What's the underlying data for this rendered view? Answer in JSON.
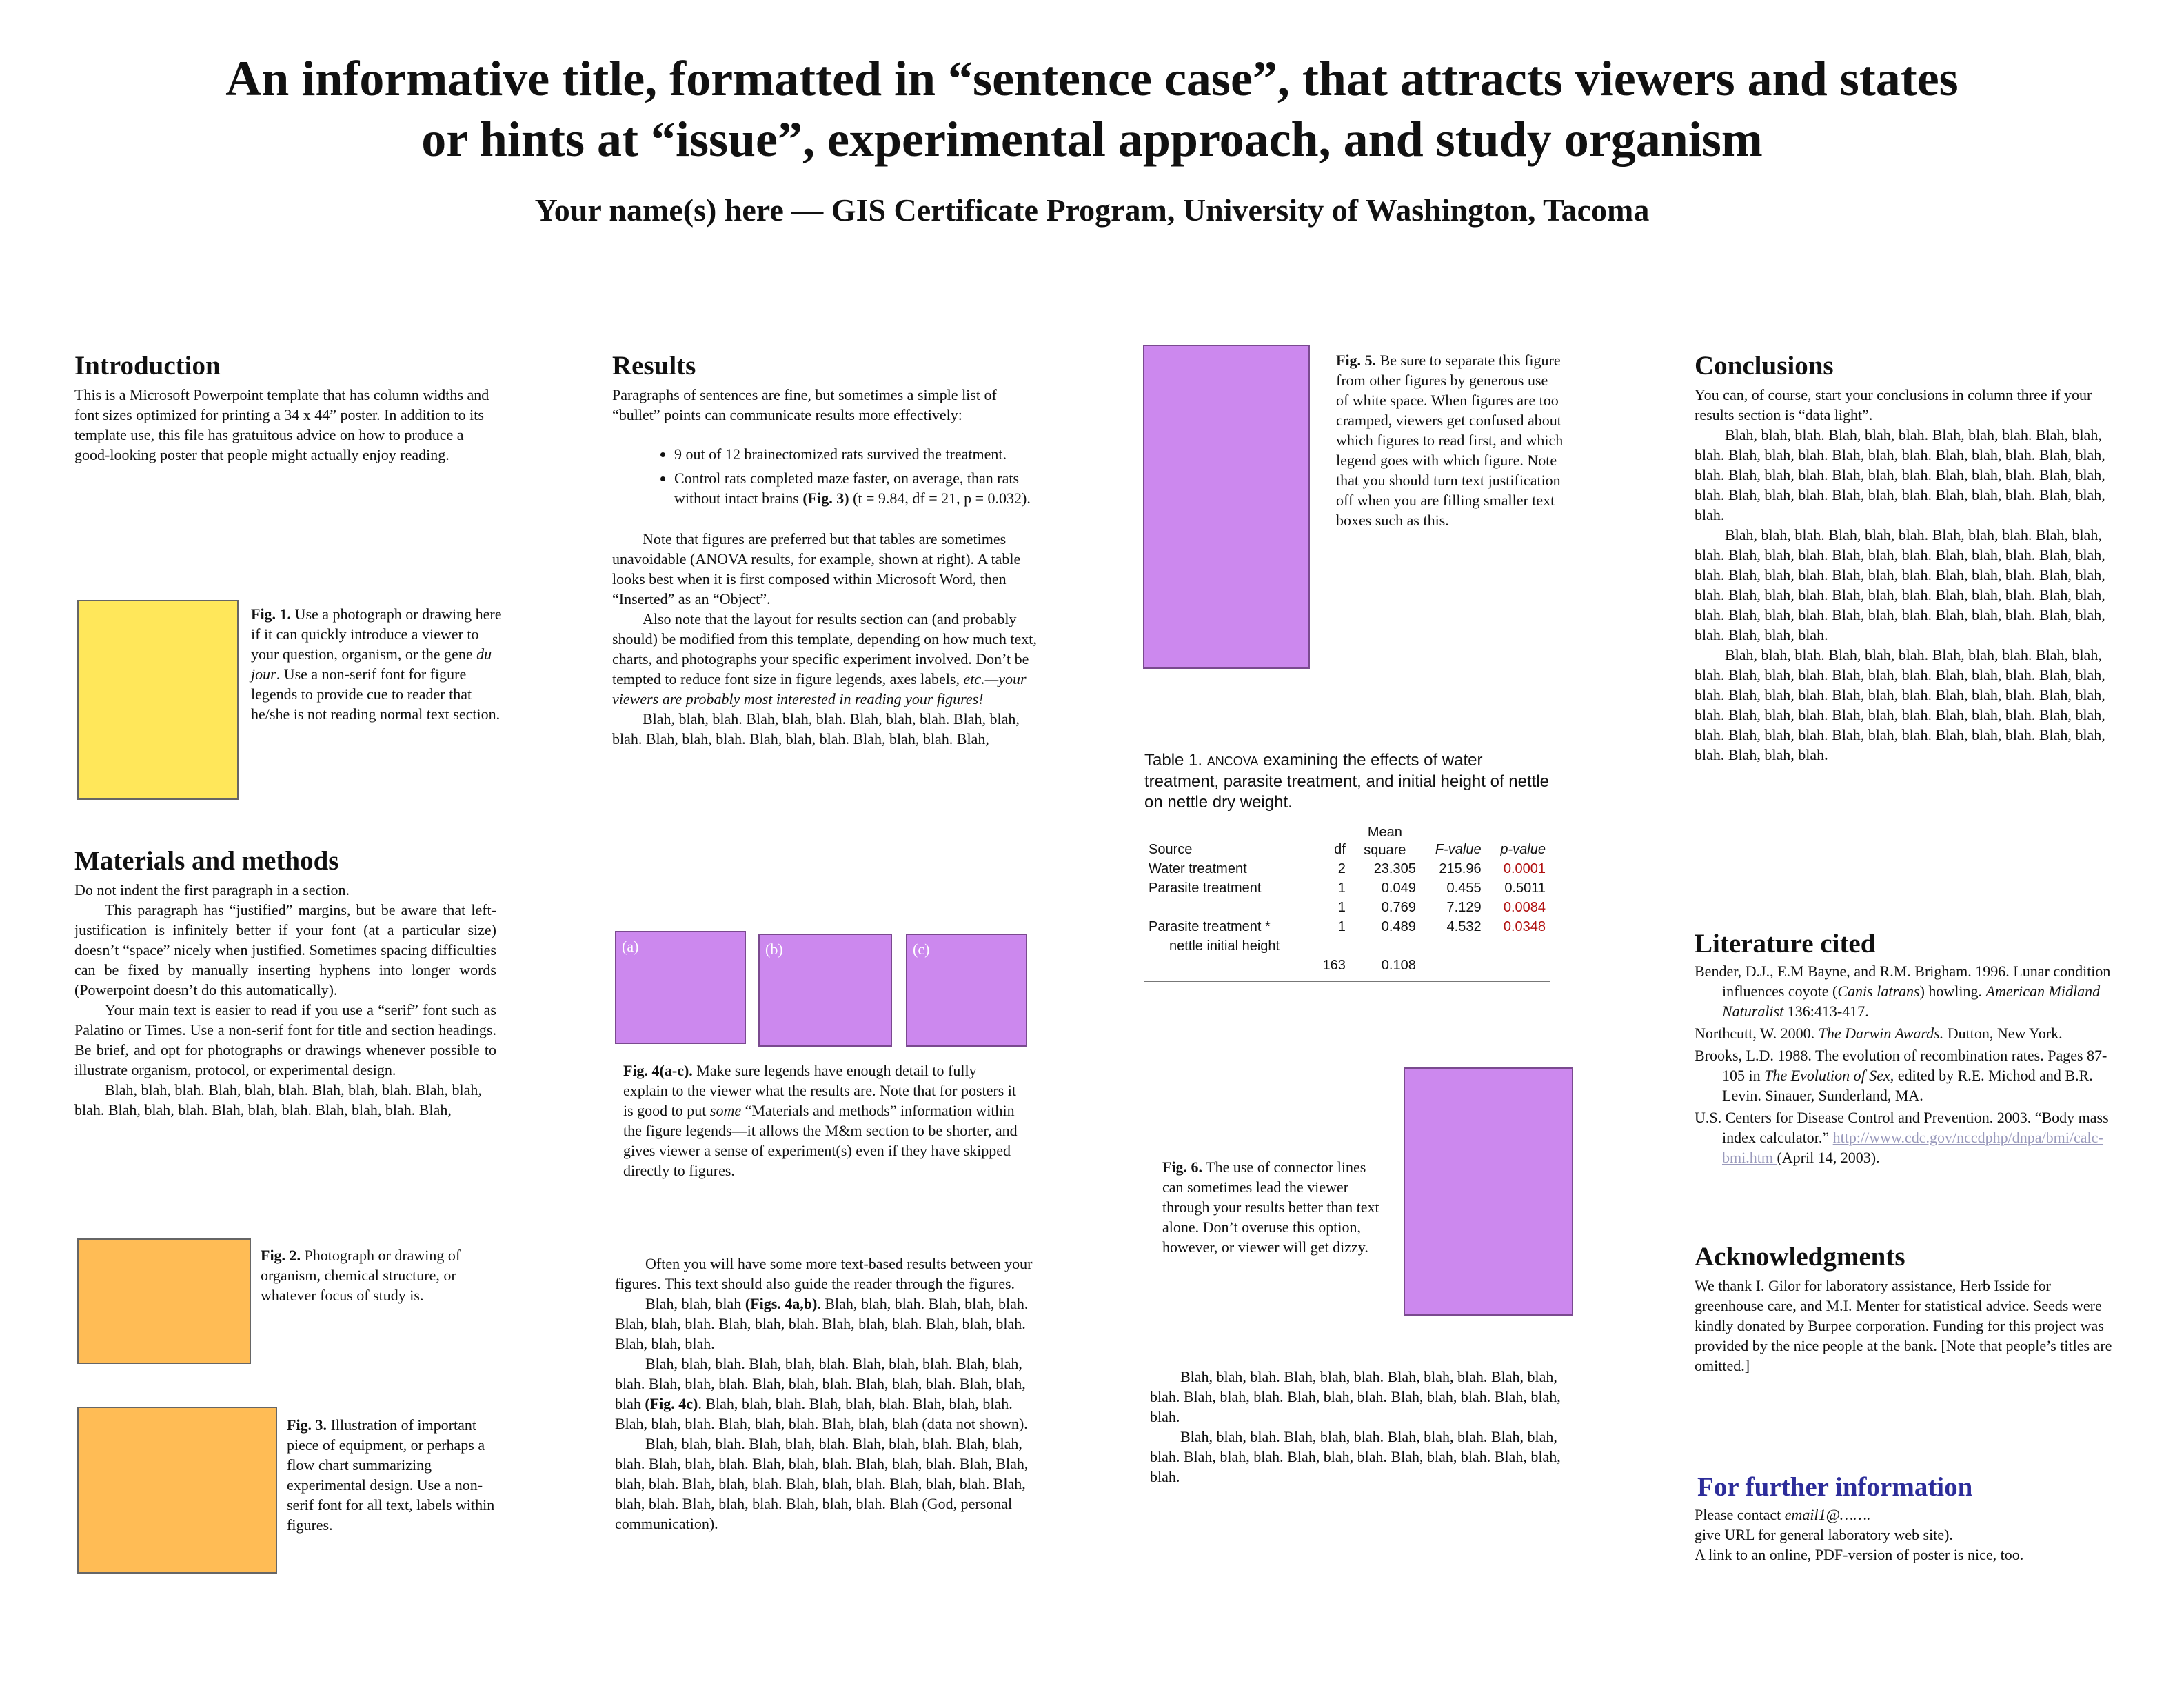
{
  "title": {
    "line1": "An informative title, formatted in “sentence case”, that attracts viewers and states",
    "line2": "or hints at “issue”, experimental approach, and study organism"
  },
  "authors": "Your name(s) here — GIS Certificate Program, University of Washington, Tacoma",
  "introduction": {
    "heading": "Introduction",
    "text": "This is a Microsoft Powerpoint template that has column widths and font sizes optimized for printing a 34 x 44” poster. In addition to its template use, this file has gratuitous advice on how to produce a good-looking poster that people might actually enjoy reading."
  },
  "fig1": {
    "label": "Fig. 1.",
    "text_a": " Use a photograph or drawing here if it can quickly introduce a viewer to your question, organism, or the gene ",
    "italic": "du jour",
    "text_b": ". Use a non-serif font for figure legends to provide cue to reader that he/she is not reading normal text section."
  },
  "materials": {
    "heading": "Materials and methods",
    "p1": "Do not indent the first paragraph in a section.",
    "p2": "This paragraph has “justified” margins, but be aware that left-justification is infinitely better if your font (at a particular size) doesn’t “space” nicely when justified. Sometimes spacing difficulties can be fixed by manually inserting hyphens into longer words (Powerpoint doesn’t do this automatically).",
    "p3": "Your main text is easier to read if you use a “serif” font such as Palatino or Times.  Use a non-serif font for title and section headings. Be brief, and opt for photographs or drawings whenever possible to illustrate organism, protocol, or experimental design.",
    "p4": "Blah, blah, blah. Blah, blah, blah. Blah, blah, blah. Blah, blah, blah. Blah, blah, blah. Blah, blah, blah.          Blah, blah, blah. Blah,"
  },
  "fig2": {
    "label": "Fig. 2.",
    "text": " Photograph or drawing of organism, chemical structure, or whatever focus of study is."
  },
  "fig3": {
    "label": "Fig. 3.",
    "text": " Illustration of important piece of equipment, or perhaps a flow chart summarizing experimental design.  Use a non-serif font for all text, labels within figures."
  },
  "results": {
    "heading": "Results",
    "p1": "Paragraphs of sentences are fine, but sometimes a simple list of “bullet” points can communicate results more effectively:",
    "bullet1": "9 out of 12 brainectomized rats survived the treatment.",
    "bullet2_a": "Control rats completed maze faster, on average, than rats without intact brains ",
    "bullet2_fig": "(Fig. 3)",
    "bullet2_b": " (t = 9.84, df = 21, p = 0.032).",
    "p2": "Note that figures are preferred but that tables are sometimes unavoidable (ANOVA results, for example, shown at right).  A table looks best when it is first composed within Microsoft Word, then “Inserted” as an “Object”.",
    "p3_a": "Also note that the layout for results section can (and probably should) be modified from this template, depending on how much text, charts, and photographs your specific experiment involved. Don’t be tempted to reduce font size in figure legends, axes labels, ",
    "p3_italic": "etc.—your viewers are probably most interested in reading your figures!",
    "p4": "Blah, blah, blah. Blah, blah, blah. Blah, blah, blah. Blah, blah, blah. Blah, blah, blah. Blah, blah, blah.          Blah, blah, blah. Blah,"
  },
  "fig4": {
    "panels": [
      "(a)",
      "(b)",
      "(c)"
    ],
    "label": "Fig. 4(a-c).",
    "text_a": " Make sure legends have enough detail to fully explain to the viewer what the results are. Note that for posters it is good to put ",
    "italic": "some",
    "text_b": " “Materials and methods” information within the figure legends—it allows the M&m section to be shorter, and gives viewer a sense of experiment(s) even if they have skipped directly to figures."
  },
  "results2": {
    "p1": "Often you will have some more text-based results between your figures. This text should also guide the reader through the figures.",
    "p2_a": "Blah, blah, blah ",
    "p2_fig": "(Figs. 4a,b)",
    "p2_b": ". Blah, blah, blah. Blah, blah, blah. Blah, blah, blah. Blah, blah, blah. Blah, blah, blah. Blah, blah, blah. Blah, blah, blah.",
    "p3_a": "Blah, blah, blah. Blah, blah, blah. Blah, blah, blah. Blah, blah, blah. Blah, blah, blah. Blah, blah, blah.          Blah, blah, blah. Blah, blah, blah ",
    "p3_fig": "(Fig. 4c)",
    "p3_b": ". Blah, blah, blah. Blah, blah, blah. Blah, blah, blah. Blah, blah, blah. Blah, blah, blah. Blah, blah, blah (data not shown).",
    "p4": "Blah, blah, blah. Blah, blah, blah. Blah, blah, blah. Blah, blah, blah. Blah, blah, blah. Blah, blah, blah.  Blah, blah, blah. Blah,  Blah, blah, blah. Blah, blah, blah. Blah, blah, blah. Blah, blah, blah. Blah, blah, blah. Blah, blah, blah.  Blah, blah, blah. Blah (God, personal communication)."
  },
  "fig5": {
    "label": "Fig. 5.",
    "text": " Be sure to separate this figure from other figures by generous use of white space. When figures are too cramped, viewers get confused about which figures to read first, and which legend goes with which figure. Note that you should turn text justification off when you are filling smaller text boxes such as this."
  },
  "table1": {
    "label": "Table 1.",
    "caption_a": "  ",
    "caption_sc": "ANCOVA",
    "caption_b": " examining the effects of water treatment, parasite treatment, and initial height of nettle on nettle dry weight.",
    "headers": [
      "Source",
      "df",
      "Mean square",
      "F-value",
      "p-value"
    ],
    "rows": [
      [
        "Water treatment",
        "2",
        "23.305",
        "215.96",
        "0.0001"
      ],
      [
        "Parasite treatment",
        "1",
        "0.049",
        "0.455",
        "0.5011"
      ],
      [
        "",
        "1",
        "0.769",
        "7.129",
        "0.0084"
      ],
      [
        "Parasite treatment *",
        "1",
        "0.489",
        "4.532",
        "0.0348"
      ],
      [
        "nettle initial height",
        "",
        "",
        "",
        ""
      ],
      [
        "",
        "163",
        "0.108",
        "",
        ""
      ]
    ],
    "significant_color": "#b01010"
  },
  "fig6": {
    "label": "Fig. 6.",
    "text": "  The use of connector lines can sometimes lead the viewer through your results better than text alone.  Don’t overuse this option, however, or viewer will get dizzy."
  },
  "col3_text": {
    "p1": "Blah, blah, blah. Blah, blah, blah. Blah, blah, blah. Blah, blah, blah. Blah, blah, blah. Blah, blah, blah. Blah, blah, blah. Blah, blah, blah.",
    "p2": "Blah, blah, blah. Blah, blah, blah. Blah, blah, blah. Blah, blah, blah. Blah, blah, blah. Blah, blah, blah. Blah, blah, blah. Blah, blah, blah."
  },
  "conclusions": {
    "heading": "Conclusions",
    "p1": "You can, of course, start your conclusions in column three if your results section is “data light”.",
    "p2": "Blah, blah, blah. Blah, blah, blah. Blah, blah, blah. Blah, blah, blah. Blah, blah, blah. Blah, blah, blah. Blah, blah, blah. Blah, blah, blah. Blah, blah, blah. Blah, blah, blah. Blah, blah, blah. Blah, blah, blah. Blah, blah, blah. Blah, blah, blah. Blah, blah, blah. Blah, blah, blah.",
    "p3": "Blah, blah, blah. Blah, blah, blah. Blah, blah, blah. Blah, blah, blah. Blah, blah, blah. Blah, blah, blah. Blah, blah, blah. Blah, blah, blah. Blah, blah, blah. Blah, blah, blah. Blah, blah, blah. Blah, blah, blah. Blah, blah, blah. Blah, blah, blah. Blah, blah, blah. Blah, blah, blah. Blah, blah, blah. Blah, blah, blah. Blah, blah, blah. Blah, blah, blah. Blah, blah, blah.",
    "p4": "Blah, blah, blah. Blah, blah, blah. Blah, blah, blah. Blah, blah, blah. Blah, blah, blah. Blah, blah, blah. Blah, blah, blah. Blah, blah, blah. Blah, blah, blah. Blah, blah, blah. Blah, blah, blah. Blah, blah, blah. Blah, blah, blah. Blah, blah, blah. Blah, blah, blah. Blah, blah, blah. Blah, blah, blah. Blah, blah, blah. Blah, blah, blah. Blah, blah, blah. Blah, blah, blah."
  },
  "literature": {
    "heading": "Literature cited",
    "ref1_a": "Bender, D.J., E.M Bayne, and R.M. Brigham. 1996. Lunar condition influences coyote (",
    "ref1_it": "Canis latrans",
    "ref1_b": ") howling. ",
    "ref1_journal": "American Midland Naturalist",
    "ref1_c": " 136:413-417.",
    "ref2_a": "Northcutt, W. 2000. ",
    "ref2_it": "The Darwin Awards.",
    "ref2_b": " Dutton, New York.",
    "ref3_a": "Brooks, L.D. 1988. The evolution of recombination rates. Pages 87-105 in ",
    "ref3_it": "The Evolution of Sex,",
    "ref3_b": " edited by R.E. Michod and B.R. Levin. Sinauer, Sunderland, MA.",
    "ref4_a": "U.S. Centers for Disease Control and Prevention. 2003. “Body mass index calculator.”  ",
    "ref4_link": "http://www.cdc.gov/nccdphp/dnpa/bmi/calc-bmi.htm ",
    "ref4_b": "(April 14, 2003)."
  },
  "acknowledgments": {
    "heading": "Acknowledgments",
    "text": "We thank I. Gilor for laboratory assistance, Herb Isside for greenhouse care, and M.I. Menter for statistical advice. Seeds were kindly donated by Burpee corporation. Funding for this project was provided by the nice people at the bank. [Note that people’s titles are omitted.]"
  },
  "further_info": {
    "heading": "For further information",
    "line1_a": "Please contact  ",
    "line1_it": "email1@…….",
    "line2": "give URL for general laboratory web site).",
    "line3": "A link to an online, PDF-version of poster is nice, too."
  },
  "colors": {
    "yellow_figure": "#ffe75a",
    "orange_figure": "#ffbc55",
    "purple_figure": "#cc88ee",
    "further_info_heading": "#2d2d9a"
  }
}
